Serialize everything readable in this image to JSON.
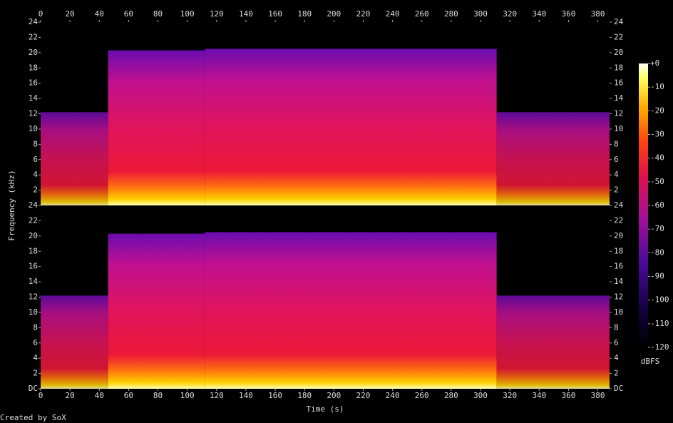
{
  "chart_data": {
    "type": "spectrogram",
    "xlabel": "Time (s)",
    "ylabel": "Frequency (kHz)",
    "credit": "Created by SoX",
    "xlim": [
      0,
      388
    ],
    "xticks": [
      0,
      20,
      40,
      60,
      80,
      100,
      120,
      140,
      160,
      180,
      200,
      220,
      240,
      260,
      280,
      300,
      320,
      340,
      360,
      380
    ],
    "ylim": [
      0,
      24
    ],
    "channels": [
      {
        "yticks": [
          2,
          4,
          6,
          8,
          10,
          12,
          14,
          16,
          18,
          20,
          22,
          24
        ],
        "segments": {
          "start": [
            0,
            46,
            112,
            311
          ],
          "end": [
            46,
            112,
            311,
            388
          ],
          "fmax": [
            12.2,
            20.3,
            20.5,
            12.2
          ]
        }
      },
      {
        "yticks": [
          {
            "value": 0,
            "label": "DC"
          },
          2,
          4,
          6,
          8,
          10,
          12,
          14,
          16,
          18,
          20,
          22,
          24
        ],
        "segments": {
          "start": [
            0,
            46,
            112,
            311
          ],
          "end": [
            46,
            112,
            311,
            388
          ],
          "fmax": [
            12.2,
            20.3,
            20.5,
            12.2
          ]
        }
      }
    ],
    "colorbar": {
      "label": "dBFS",
      "lim": [
        -120,
        0
      ],
      "ticks": [
        {
          "value": 0,
          "label": "+0"
        },
        -10,
        -20,
        -30,
        -40,
        -50,
        -60,
        -70,
        -80,
        -90,
        -100,
        -110,
        -120
      ]
    }
  }
}
